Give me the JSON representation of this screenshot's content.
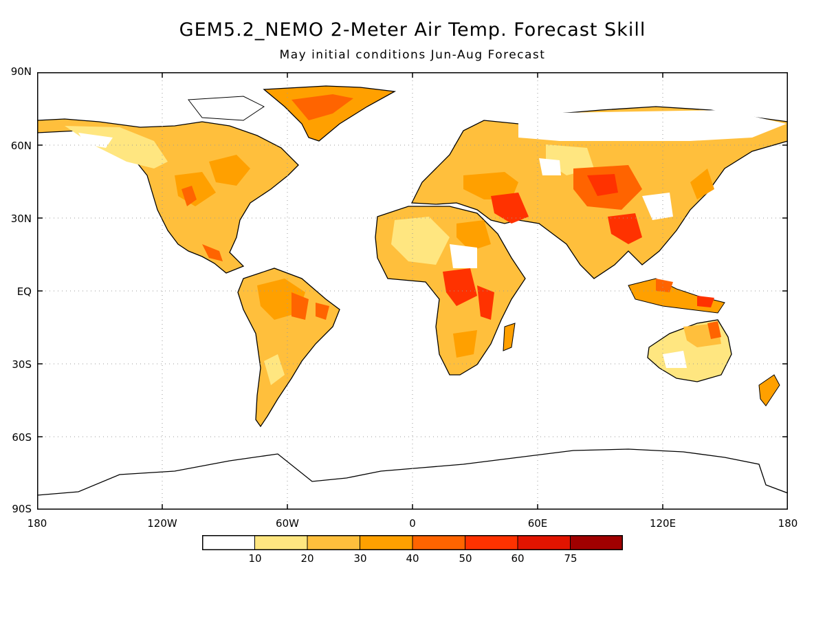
{
  "title": "GEM5.2_NEMO 2-Meter Air Temp. Forecast Skill",
  "subtitle": "May initial conditions  Jun-Aug Forecast",
  "lat_labels": [
    "90N",
    "60N",
    "30N",
    "EQ",
    "30S",
    "60S",
    "90S"
  ],
  "lon_labels": [
    "180",
    "120W",
    "60W",
    "0",
    "60E",
    "120E",
    "180"
  ],
  "colorbar": {
    "colors": [
      "#ffffff",
      "#ffe680",
      "#ffbf3c",
      "#ffa000",
      "#ff6400",
      "#ff3200",
      "#e11400",
      "#a00000"
    ],
    "labels": [
      "10",
      "20",
      "30",
      "40",
      "50",
      "60",
      "75"
    ]
  }
}
